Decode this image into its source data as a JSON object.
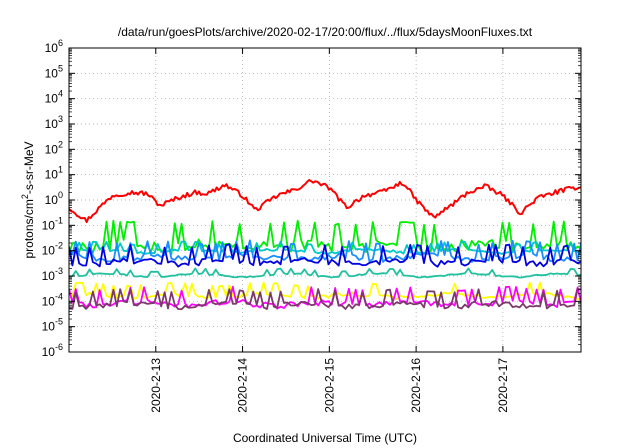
{
  "chart_data": {
    "type": "line",
    "title": "/data/run/goesPlots/archive/2020-02-17/20:00/flux/../flux/5daysMoonFluxes.txt",
    "xlabel": "Coordinated Universal Time (UTC)",
    "ylabel": {
      "base": "protons/cm",
      "sup": "2",
      "rest": "-s-sr-MeV"
    },
    "y_scale": "log",
    "ylim_exp": [
      -6,
      6
    ],
    "y_tick_labels": [
      {
        "base": "10",
        "exp": "6"
      },
      {
        "base": "10",
        "exp": "5"
      },
      {
        "base": "10",
        "exp": "4"
      },
      {
        "base": "10",
        "exp": "3"
      },
      {
        "base": "10",
        "exp": "2"
      },
      {
        "base": "10",
        "exp": "1"
      },
      {
        "base": "10",
        "exp": "0"
      },
      {
        "base": "10",
        "exp": "-1"
      },
      {
        "base": "10",
        "exp": "-2"
      },
      {
        "base": "10",
        "exp": "-3"
      },
      {
        "base": "10",
        "exp": "-4"
      },
      {
        "base": "10",
        "exp": "-5"
      },
      {
        "base": "10",
        "exp": "-6"
      }
    ],
    "xlim_days": [
      12.0,
      17.9
    ],
    "x_ticks": [
      {
        "day": 13,
        "label": "2020-2-13"
      },
      {
        "day": 14,
        "label": "2020-2-14"
      },
      {
        "day": 15,
        "label": "2020-2-15"
      },
      {
        "day": 16,
        "label": "2020-2-16"
      },
      {
        "day": 17,
        "label": "2020-2-17"
      }
    ],
    "grid": true,
    "series": [
      {
        "color": "#ff0000",
        "mode": "smooth",
        "x": [
          12.0,
          12.2,
          12.35,
          12.5,
          12.7,
          12.9,
          13.05,
          13.25,
          13.45,
          13.6,
          13.8,
          14.0,
          14.15,
          14.4,
          14.6,
          14.8,
          15.0,
          15.2,
          15.4,
          15.6,
          15.85,
          16.0,
          16.2,
          16.4,
          16.6,
          16.8,
          17.0,
          17.2,
          17.4,
          17.6,
          17.9
        ],
        "y": [
          0.5,
          0.15,
          0.5,
          1.5,
          2.0,
          1.8,
          0.6,
          1.2,
          2.0,
          1.8,
          4.0,
          1.5,
          0.4,
          1.5,
          2.5,
          6.0,
          3.0,
          0.5,
          1.5,
          2.0,
          5.0,
          1.0,
          0.2,
          0.6,
          2.0,
          3.5,
          1.5,
          0.3,
          1.2,
          2.0,
          3.5
        ]
      },
      {
        "color": "#00ee00",
        "mode": "noisy",
        "base": 0.02,
        "amp": 2.2,
        "phase": 1.7
      },
      {
        "color": "#00c8c8",
        "mode": "noisy",
        "base": 0.01,
        "amp": 0.5,
        "phase": 3.1
      },
      {
        "color": "#1a8fff",
        "mode": "noisy",
        "base": 0.006,
        "amp": 1.2,
        "phase": 5.2
      },
      {
        "color": "#0000e0",
        "mode": "noisy",
        "base": 0.004,
        "amp": 1.3,
        "phase": 0.6
      },
      {
        "color": "#20c0a0",
        "mode": "noisy",
        "base": 0.0011,
        "amp": 0.3,
        "phase": 2.4
      },
      {
        "color": "#ffff00",
        "mode": "noisy",
        "base": 0.00018,
        "amp": 0.8,
        "phase": 4.1
      },
      {
        "color": "#ff00ff",
        "mode": "noisy",
        "base": 9e-05,
        "amp": 1.2,
        "phase": 6.3
      },
      {
        "color": "#7a3a6a",
        "mode": "noisy",
        "base": 8e-05,
        "amp": 1.1,
        "phase": 0.9
      }
    ]
  }
}
